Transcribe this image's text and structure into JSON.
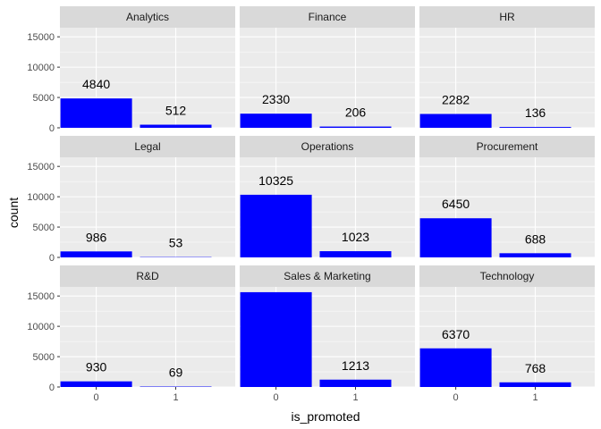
{
  "chart_data": {
    "type": "bar",
    "layout": "facet_wrap 3x3",
    "xlabel": "is_promoted",
    "ylabel": "count",
    "categories": [
      "0",
      "1"
    ],
    "ylim": [
      0,
      16500
    ],
    "yticks": [
      0,
      5000,
      10000,
      15000
    ],
    "grid": true,
    "bar_color": "#0000ff",
    "panel_background": "#ebebeb",
    "strip_background": "#d9d9d9",
    "grid_color": "#ffffff",
    "panels": [
      {
        "name": "Analytics",
        "values": [
          4840,
          512
        ],
        "labels": [
          "4840",
          "512"
        ]
      },
      {
        "name": "Finance",
        "values": [
          2330,
          206
        ],
        "labels": [
          "2330",
          "206"
        ]
      },
      {
        "name": "HR",
        "values": [
          2282,
          136
        ],
        "labels": [
          "2282",
          "136"
        ]
      },
      {
        "name": "Legal",
        "values": [
          986,
          53
        ],
        "labels": [
          "986",
          "53"
        ]
      },
      {
        "name": "Operations",
        "values": [
          10325,
          1023
        ],
        "labels": [
          "10325",
          "1023"
        ]
      },
      {
        "name": "Procurement",
        "values": [
          6450,
          688
        ],
        "labels": [
          "6450",
          "688"
        ]
      },
      {
        "name": "R&D",
        "values": [
          930,
          69
        ],
        "labels": [
          "930",
          "69"
        ]
      },
      {
        "name": "Sales & Marketing",
        "values": [
          15627,
          1213
        ],
        "labels": [
          "",
          "1213"
        ]
      },
      {
        "name": "Technology",
        "values": [
          6370,
          768
        ],
        "labels": [
          "6370",
          "768"
        ]
      }
    ]
  }
}
